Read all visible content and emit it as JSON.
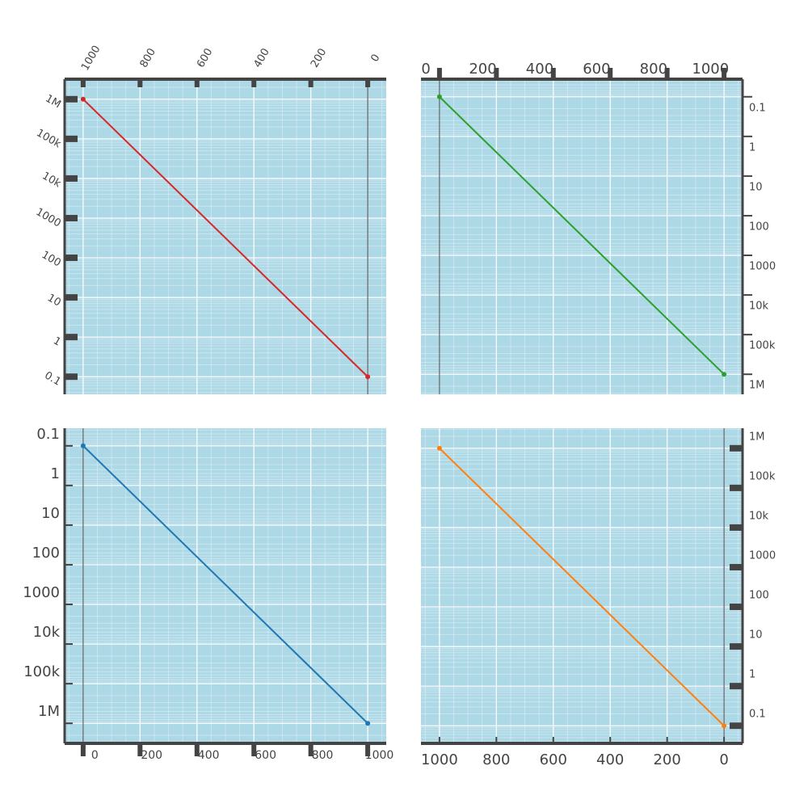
{
  "chart_data": [
    {
      "type": "line",
      "x": [
        1000,
        0
      ],
      "series": [
        {
          "color": "#d62728",
          "values": [
            1000000,
            0.1
          ]
        }
      ],
      "xlim": [
        1065,
        -65
      ],
      "ylim": [
        0.036,
        3200000
      ],
      "ylog": true,
      "x_side": "top",
      "y_side": "left",
      "grid": true,
      "zeroline": true,
      "xticks": [
        0,
        200,
        400,
        600,
        800,
        1000
      ],
      "yticks": [
        0.1,
        1,
        10,
        100,
        1000,
        {
          "value": 10000,
          "label": "10k"
        },
        {
          "value": 100000,
          "label": "100k"
        },
        {
          "value": 1000000,
          "label": "1M"
        }
      ]
    },
    {
      "type": "line",
      "x": [
        0,
        1000
      ],
      "series": [
        {
          "color": "#2ca02c",
          "values": [
            0.1,
            1000000
          ]
        }
      ],
      "xlim": [
        -65,
        1065
      ],
      "ylim": [
        3200000,
        0.036
      ],
      "ylog": true,
      "x_side": "top",
      "y_side": "right",
      "grid": true,
      "zeroline": true,
      "xticks": [
        0,
        200,
        400,
        600,
        800,
        1000
      ],
      "yticks": [
        0.1,
        1,
        10,
        100,
        1000,
        {
          "value": 10000,
          "label": "10k"
        },
        {
          "value": 100000,
          "label": "100k"
        },
        {
          "value": 1000000,
          "label": "1M"
        }
      ]
    },
    {
      "type": "line",
      "x": [
        0,
        1000
      ],
      "series": [
        {
          "color": "#1f77b4",
          "values": [
            0.1,
            1000000
          ]
        }
      ],
      "xlim": [
        -65,
        1065
      ],
      "ylim": [
        3200000,
        0.036
      ],
      "ylog": true,
      "x_side": "bottom",
      "y_side": "left",
      "grid": true,
      "zeroline": true,
      "xticks": [
        0,
        200,
        400,
        600,
        800,
        1000
      ],
      "yticks": [
        0.1,
        1,
        10,
        100,
        1000,
        {
          "value": 10000,
          "label": "10k"
        },
        {
          "value": 100000,
          "label": "100k"
        },
        {
          "value": 1000000,
          "label": "1M"
        }
      ]
    },
    {
      "type": "line",
      "x": [
        1000,
        0
      ],
      "series": [
        {
          "color": "#ff7f0e",
          "values": [
            1000000,
            0.1
          ]
        }
      ],
      "xlim": [
        1065,
        -65
      ],
      "ylim": [
        0.036,
        3200000
      ],
      "ylog": true,
      "x_side": "bottom",
      "y_side": "right",
      "grid": true,
      "zeroline": true,
      "xticks": [
        0,
        200,
        400,
        600,
        800,
        1000
      ],
      "yticks": [
        0.1,
        1,
        10,
        100,
        1000,
        {
          "value": 10000,
          "label": "10k"
        },
        {
          "value": 100000,
          "label": "100k"
        },
        {
          "value": 1000000,
          "label": "1M"
        }
      ]
    }
  ]
}
